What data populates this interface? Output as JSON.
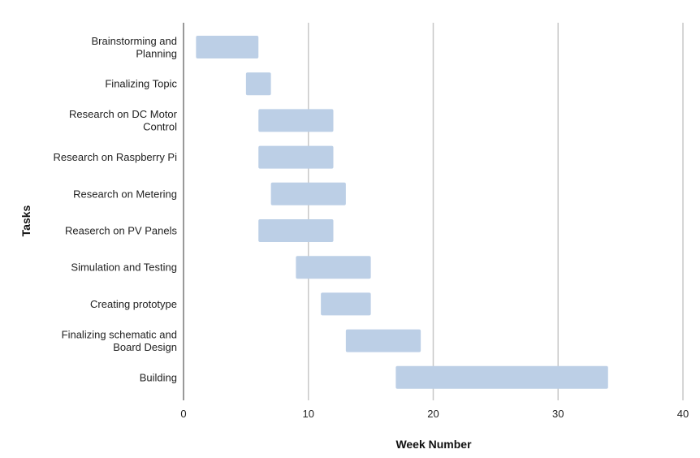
{
  "chart_data": {
    "type": "bar",
    "orientation": "horizontal",
    "subtype": "gantt",
    "title": "",
    "xlabel": "Week Number",
    "ylabel": "Tasks",
    "xlim": [
      0,
      40
    ],
    "xticks": [
      0,
      10,
      20,
      30,
      40
    ],
    "grid": "vertical",
    "legend": "none",
    "bar_color": "#bccfe6",
    "tasks": [
      {
        "label": [
          "Brainstorming and",
          "Planning"
        ],
        "start": 1,
        "end": 6
      },
      {
        "label": [
          "Finalizing Topic"
        ],
        "start": 5,
        "end": 7
      },
      {
        "label": [
          "Research on DC Motor",
          "Control"
        ],
        "start": 6,
        "end": 12
      },
      {
        "label": [
          "Research on Raspberry Pi"
        ],
        "start": 6,
        "end": 12
      },
      {
        "label": [
          "Research on Metering"
        ],
        "start": 7,
        "end": 13
      },
      {
        "label": [
          "Reaserch on PV Panels"
        ],
        "start": 6,
        "end": 12
      },
      {
        "label": [
          "Simulation and Testing"
        ],
        "start": 9,
        "end": 15
      },
      {
        "label": [
          "Creating prototype"
        ],
        "start": 11,
        "end": 15
      },
      {
        "label": [
          "Finalizing schematic and",
          "Board Design"
        ],
        "start": 13,
        "end": 19
      },
      {
        "label": [
          "Building"
        ],
        "start": 17,
        "end": 34
      }
    ]
  }
}
